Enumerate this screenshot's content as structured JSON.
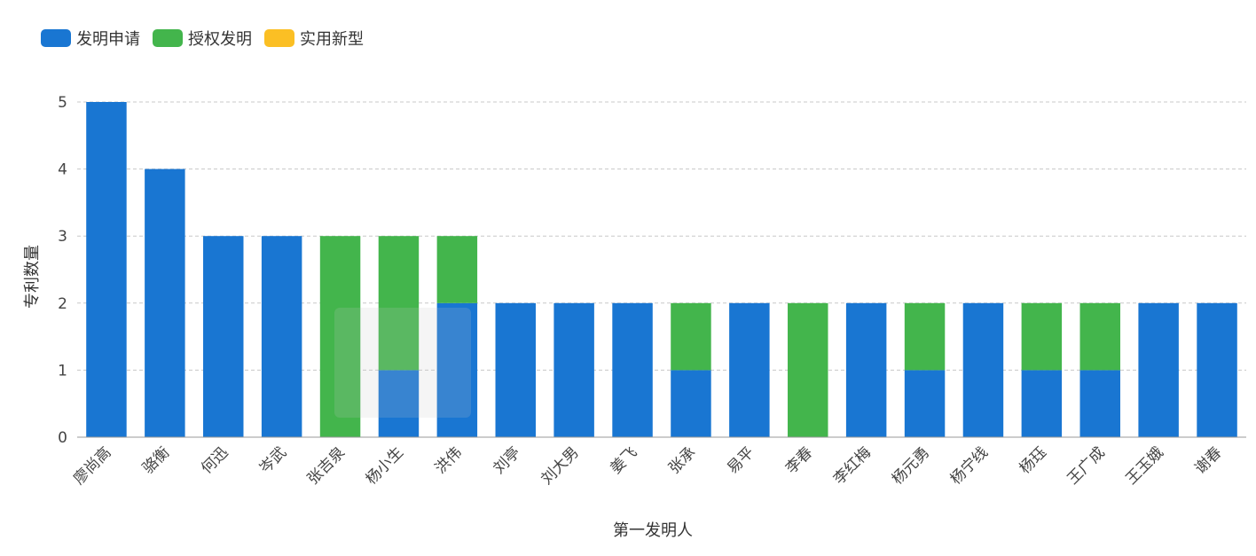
{
  "colors": {
    "invention_application": "#1976d2",
    "granted_invention": "#43b54c",
    "utility_model": "#fbbf24"
  },
  "legend": {
    "items": [
      {
        "label": "发明申请",
        "color": "#1976d2"
      },
      {
        "label": "授权发明",
        "color": "#43b54c"
      },
      {
        "label": "实用新型",
        "color": "#fbbf24"
      }
    ]
  },
  "chart_data": {
    "type": "bar",
    "stacked": true,
    "xlabel": "第一发明人",
    "ylabel": "专利数量",
    "ylim": [
      0,
      5
    ],
    "yticks": [
      0,
      1,
      2,
      3,
      4,
      5
    ],
    "grid": true,
    "legend_position": "top-left",
    "categories": [
      "廖尚高",
      "骆衡",
      "何迅",
      "岑武",
      "张吉泉",
      "杨小生",
      "洪伟",
      "刘亭",
      "刘大男",
      "姜飞",
      "张承",
      "易平",
      "李春",
      "李红梅",
      "杨元勇",
      "杨宁线",
      "杨珏",
      "王广成",
      "王玉娥",
      "谢春"
    ],
    "series": [
      {
        "name": "发明申请",
        "color": "#1976d2",
        "values": [
          5,
          4,
          3,
          3,
          0,
          1,
          2,
          2,
          2,
          2,
          1,
          2,
          0,
          2,
          1,
          2,
          1,
          1,
          2,
          2
        ]
      },
      {
        "name": "授权发明",
        "color": "#43b54c",
        "values": [
          0,
          0,
          0,
          0,
          3,
          2,
          1,
          0,
          0,
          0,
          1,
          0,
          2,
          0,
          1,
          0,
          1,
          1,
          0,
          0
        ]
      },
      {
        "name": "实用新型",
        "color": "#fbbf24",
        "values": [
          0,
          0,
          0,
          0,
          0,
          0,
          0,
          0,
          0,
          0,
          0,
          0,
          0,
          0,
          0,
          0,
          0,
          0,
          0,
          0
        ]
      }
    ]
  }
}
